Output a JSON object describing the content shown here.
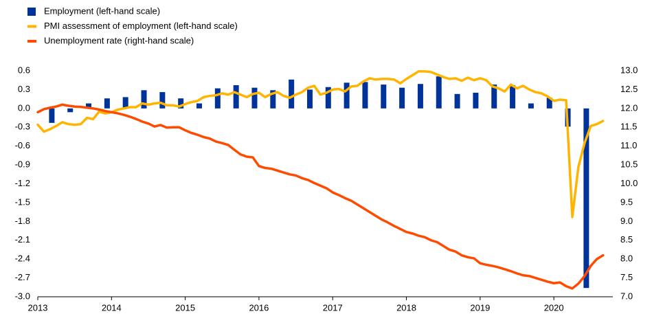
{
  "chart_data": {
    "type": "bar",
    "xlim": [
      2013,
      2020.8
    ],
    "xticks": [
      2013,
      2014,
      2015,
      2016,
      2017,
      2018,
      2019,
      2020
    ],
    "ylim": [
      -3.0,
      0.6
    ],
    "yticks": [
      0.6,
      0.3,
      {
        "value": 0,
        "label": "0.0"
      },
      -0.3,
      -0.6,
      -0.9,
      -1.2,
      -1.5,
      -1.8,
      -2.1,
      -2.4,
      -2.7,
      {
        "value": -3,
        "label": "-3.0"
      }
    ],
    "y2lim": [
      7.0,
      13.0
    ],
    "y2ticks": [
      {
        "value": 13,
        "label": "13.0"
      },
      12.5,
      {
        "value": 12,
        "label": "12.0"
      },
      11.5,
      {
        "value": 11,
        "label": "11.0"
      },
      10.5,
      {
        "value": 10,
        "label": "10.0"
      },
      9.5,
      {
        "value": 9,
        "label": "9.0"
      },
      8.5,
      {
        "value": 8,
        "label": "8.0"
      },
      7.5,
      {
        "value": 7,
        "label": "7.0"
      }
    ],
    "x": [
      2013,
      2013.083,
      2013.167,
      2013.25,
      2013.333,
      2013.417,
      2013.5,
      2013.583,
      2013.667,
      2013.75,
      2013.833,
      2013.917,
      2014,
      2014.083,
      2014.167,
      2014.25,
      2014.333,
      2014.417,
      2014.5,
      2014.583,
      2014.667,
      2014.75,
      2014.833,
      2014.917,
      2015,
      2015.083,
      2015.167,
      2015.25,
      2015.333,
      2015.417,
      2015.5,
      2015.583,
      2015.667,
      2015.75,
      2015.833,
      2015.917,
      2016,
      2016.083,
      2016.167,
      2016.25,
      2016.333,
      2016.417,
      2016.5,
      2016.583,
      2016.667,
      2016.75,
      2016.833,
      2016.917,
      2017,
      2017.083,
      2017.167,
      2017.25,
      2017.333,
      2017.417,
      2017.5,
      2017.583,
      2017.667,
      2017.75,
      2017.833,
      2017.917,
      2018,
      2018.083,
      2018.167,
      2018.25,
      2018.333,
      2018.417,
      2018.5,
      2018.583,
      2018.667,
      2018.75,
      2018.833,
      2018.917,
      2019,
      2019.083,
      2019.167,
      2019.25,
      2019.333,
      2019.417,
      2019.5,
      2019.583,
      2019.667,
      2019.75,
      2019.833,
      2019.917,
      2020,
      2020.083,
      2020.167,
      2020.25,
      2020.333,
      2020.417,
      2020.5,
      2020.583,
      2020.667
    ],
    "series": [
      {
        "name": "Employment (left-hand scale)",
        "type": "bar",
        "color": "#003399",
        "axis": "y",
        "x": [
          2013.19,
          2013.44,
          2013.69,
          2013.94,
          2014.19,
          2014.44,
          2014.69,
          2014.94,
          2015.19,
          2015.44,
          2015.69,
          2015.94,
          2016.19,
          2016.44,
          2016.69,
          2016.94,
          2017.19,
          2017.44,
          2017.69,
          2017.94,
          2018.19,
          2018.44,
          2018.69,
          2018.94,
          2019.19,
          2019.44,
          2019.69,
          2019.94,
          2020.19,
          2020.44
        ],
        "values": [
          -0.23,
          -0.06,
          0.08,
          0.16,
          0.18,
          0.29,
          0.26,
          0.16,
          0.08,
          0.32,
          0.37,
          0.33,
          0.29,
          0.46,
          0.3,
          0.34,
          0.41,
          0.42,
          0.38,
          0.33,
          0.39,
          0.51,
          0.23,
          0.25,
          0.38,
          0.37,
          0.08,
          0.17,
          -0.29,
          -2.86
        ]
      },
      {
        "name": "PMI assessment of employment (left-hand scale)",
        "type": "line",
        "color": "#ffb400",
        "axis": "y",
        "values": [
          -0.26,
          -0.37,
          -0.33,
          -0.28,
          -0.22,
          -0.25,
          -0.26,
          -0.25,
          -0.15,
          -0.17,
          -0.05,
          -0.08,
          -0.06,
          -0.02,
          0.0,
          0.02,
          0.02,
          0.08,
          0.06,
          0.08,
          0.09,
          0.05,
          0.05,
          0.03,
          0.07,
          0.1,
          0.12,
          0.18,
          0.2,
          0.21,
          0.24,
          0.22,
          0.26,
          0.22,
          0.18,
          0.23,
          0.25,
          0.18,
          0.23,
          0.26,
          0.2,
          0.17,
          0.22,
          0.26,
          0.33,
          0.36,
          0.22,
          0.25,
          0.3,
          0.31,
          0.27,
          0.35,
          0.36,
          0.43,
          0.48,
          0.46,
          0.47,
          0.47,
          0.46,
          0.4,
          0.47,
          0.53,
          0.59,
          0.59,
          0.58,
          0.54,
          0.5,
          0.47,
          0.48,
          0.44,
          0.49,
          0.45,
          0.48,
          0.45,
          0.35,
          0.32,
          0.27,
          0.38,
          0.32,
          0.36,
          0.3,
          0.26,
          0.24,
          0.19,
          0.12,
          0.14,
          0.13,
          -1.73,
          -0.93,
          -0.55,
          -0.28,
          -0.25,
          -0.2
        ]
      },
      {
        "name": "Unemployment rate (right-hand scale)",
        "type": "line",
        "color": "#ff4b00",
        "axis": "y2",
        "values": [
          11.9,
          11.98,
          12.02,
          12.05,
          12.1,
          12.07,
          12.05,
          12.04,
          12.02,
          12.0,
          11.97,
          11.93,
          11.9,
          11.87,
          11.83,
          11.78,
          11.72,
          11.65,
          11.6,
          11.52,
          11.56,
          11.49,
          11.5,
          11.5,
          11.42,
          11.35,
          11.3,
          11.24,
          11.2,
          11.12,
          11.08,
          11.03,
          10.9,
          10.78,
          10.72,
          10.7,
          10.47,
          10.42,
          10.4,
          10.35,
          10.3,
          10.25,
          10.22,
          10.15,
          10.1,
          10.02,
          9.95,
          9.88,
          9.77,
          9.7,
          9.62,
          9.55,
          9.45,
          9.35,
          9.25,
          9.15,
          9.05,
          8.97,
          8.88,
          8.8,
          8.72,
          8.68,
          8.62,
          8.58,
          8.5,
          8.45,
          8.35,
          8.25,
          8.2,
          8.1,
          8.05,
          8.02,
          7.89,
          7.85,
          7.82,
          7.78,
          7.73,
          7.68,
          7.62,
          7.57,
          7.55,
          7.5,
          7.45,
          7.4,
          7.36,
          7.38,
          7.28,
          7.22,
          7.35,
          7.55,
          7.82,
          8.0,
          8.1
        ]
      }
    ]
  }
}
